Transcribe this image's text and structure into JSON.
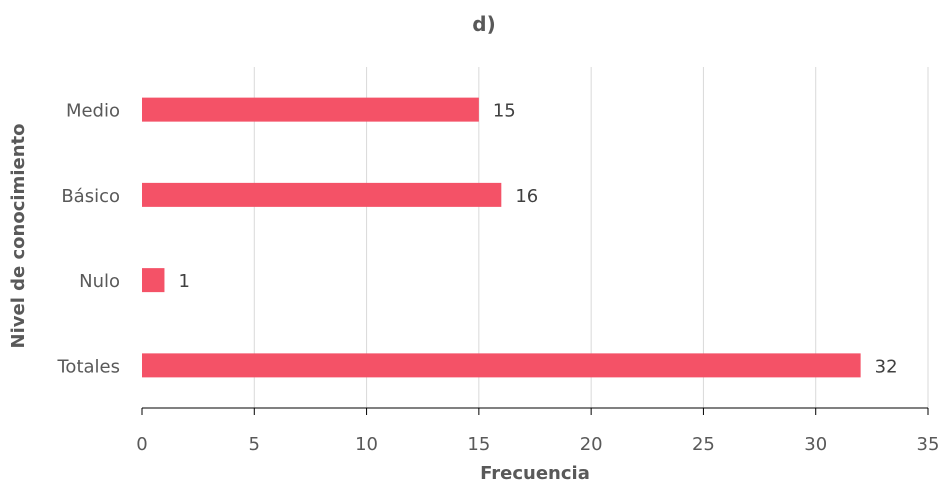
{
  "chart_data": {
    "type": "bar",
    "orientation": "horizontal",
    "title": "d)",
    "xlabel": "Frecuencia",
    "ylabel": "Nivel de conocimiento",
    "categories": [
      "Medio",
      "Básico",
      "Nulo",
      "Totales"
    ],
    "values": [
      15,
      16,
      1,
      32
    ],
    "data_labels": [
      "15",
      "16",
      "1",
      "32"
    ],
    "xlim": [
      0,
      35
    ],
    "xticks": [
      "0",
      "5",
      "10",
      "15",
      "20",
      "25",
      "30",
      "35"
    ],
    "grid": true,
    "legend": "none",
    "colors": {
      "bar": "#F45267",
      "grid": "#D9D9D9",
      "axis": "#000000",
      "text": "#595959"
    }
  }
}
